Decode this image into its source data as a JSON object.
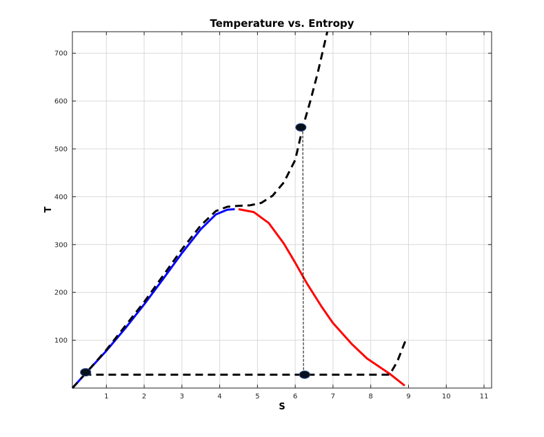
{
  "chart_data": {
    "type": "line",
    "title": "Temperature vs. Entropy",
    "xlabel": "S",
    "ylabel": "T",
    "xlim": [
      0.1,
      11.2
    ],
    "ylim": [
      0,
      745
    ],
    "grid": true,
    "xticks": [
      1,
      2,
      3,
      4,
      5,
      6,
      7,
      8,
      9,
      10,
      11
    ],
    "yticks": [
      100,
      200,
      300,
      400,
      500,
      600,
      700
    ],
    "series": [
      {
        "color": "#0000ff",
        "style": "solid",
        "points": [
          [
            0.1,
            0
          ],
          [
            0.5,
            35
          ],
          [
            1.0,
            78
          ],
          [
            1.5,
            125
          ],
          [
            2.0,
            175
          ],
          [
            2.5,
            228
          ],
          [
            3.0,
            282
          ],
          [
            3.5,
            332
          ],
          [
            3.9,
            363
          ],
          [
            4.2,
            373
          ],
          [
            4.4,
            374
          ]
        ]
      },
      {
        "color": "#ff0000",
        "style": "solid",
        "points": [
          [
            4.5,
            374
          ],
          [
            4.9,
            368
          ],
          [
            5.3,
            345
          ],
          [
            5.7,
            302
          ],
          [
            6.0,
            262
          ],
          [
            6.3,
            220
          ],
          [
            6.7,
            170
          ],
          [
            7.0,
            136
          ],
          [
            7.5,
            92
          ],
          [
            7.9,
            62
          ],
          [
            8.5,
            30
          ],
          [
            8.9,
            5
          ]
        ]
      },
      {
        "color": "#000000",
        "style": "dashed",
        "points": [
          [
            0.1,
            0
          ],
          [
            0.5,
            35
          ],
          [
            1.0,
            80
          ],
          [
            1.5,
            130
          ],
          [
            2.0,
            180
          ],
          [
            2.5,
            235
          ],
          [
            3.0,
            290
          ],
          [
            3.5,
            340
          ],
          [
            3.9,
            370
          ],
          [
            4.2,
            379
          ],
          [
            4.5,
            381
          ],
          [
            4.8,
            382
          ],
          [
            5.1,
            387
          ],
          [
            5.4,
            402
          ],
          [
            5.7,
            430
          ],
          [
            6.0,
            477
          ],
          [
            6.2,
            545
          ],
          [
            6.4,
            600
          ],
          [
            6.6,
            660
          ],
          [
            6.85,
            745
          ]
        ]
      },
      {
        "color": "#000000",
        "style": "dashed",
        "points": [
          [
            0.4,
            28
          ],
          [
            8.5,
            28
          ],
          [
            8.7,
            55
          ],
          [
            8.9,
            95
          ],
          [
            8.95,
            105
          ]
        ]
      },
      {
        "color": "#000000",
        "style": "thin-dashed",
        "points": [
          [
            6.2,
            545
          ],
          [
            6.22,
            28
          ]
        ]
      }
    ],
    "markers": [
      {
        "x": 0.45,
        "y": 33
      },
      {
        "x": 6.15,
        "y": 545
      },
      {
        "x": 6.25,
        "y": 28
      }
    ]
  }
}
